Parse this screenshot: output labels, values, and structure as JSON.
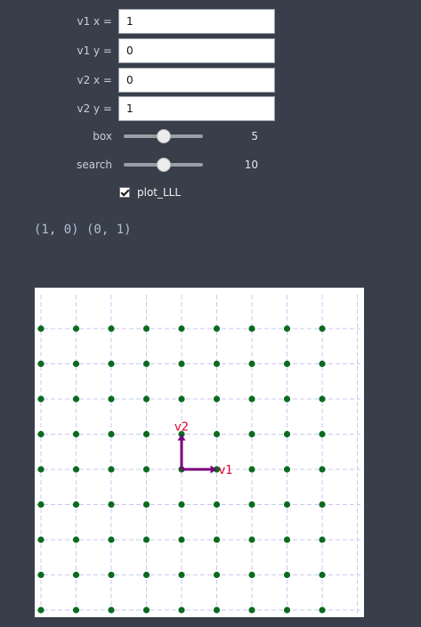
{
  "controls": {
    "v1x": {
      "label": "v1 x =",
      "value": "1"
    },
    "v1y": {
      "label": "v1 y =",
      "value": "0"
    },
    "v2x": {
      "label": "v2 x =",
      "value": "0"
    },
    "v2y": {
      "label": "v2 y =",
      "value": "1"
    },
    "box": {
      "label": "box",
      "value": "5",
      "min": 0,
      "max": 10
    },
    "search": {
      "label": "search",
      "value": "10",
      "min": 0,
      "max": 20
    },
    "plot_lll": {
      "label": "plot_LLL",
      "checked": true
    }
  },
  "output_text": "(1, 0) (0, 1)",
  "plot": {
    "vector_labels": [
      "v1",
      "v2"
    ],
    "lattice_range": [
      -4,
      4
    ],
    "point_color": "#0a6b1f",
    "vector_color": "#7b007b",
    "label_color": "#e0002a",
    "grid_color": "#c9c9f0"
  }
}
